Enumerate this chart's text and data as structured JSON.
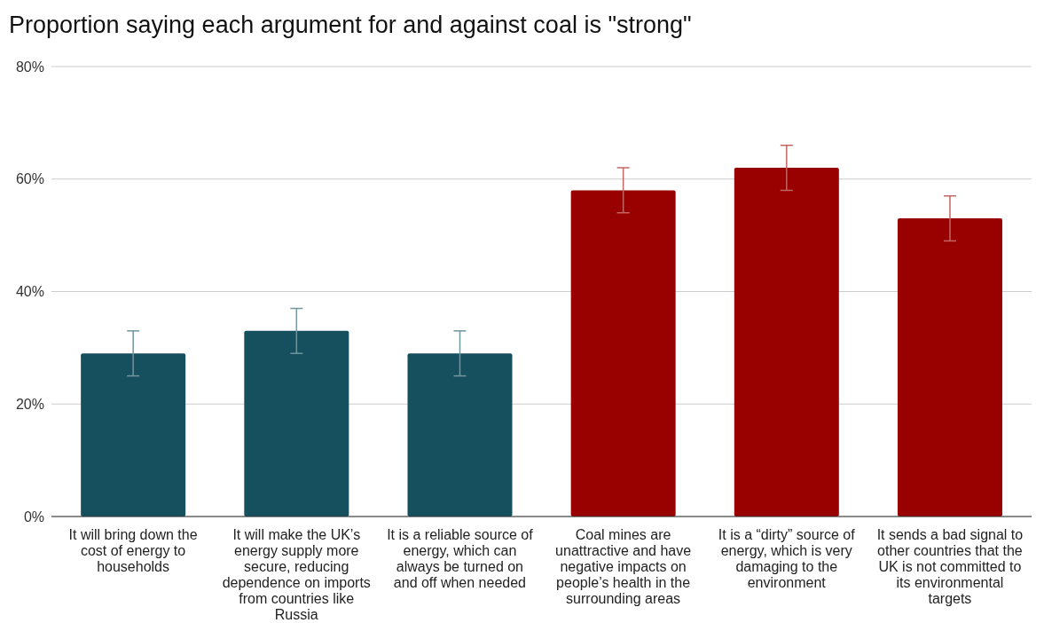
{
  "chart_data": {
    "type": "bar",
    "title": "Proportion saying each argument for and against coal is \"strong\"",
    "categories": [
      "It will bring down the cost of energy to households",
      "It will make the UK’s energy supply more secure, reducing dependence on imports from countries like Russia",
      "It is a reliable source of energy, which can always be turned on and off when needed",
      "Coal mines are unattractive and have negative impacts on people’s health in the surrounding areas",
      "It is a “dirty” source of energy, which is very damaging to the environment",
      "It sends a bad signal to other countries that the UK is not committed to its environmental targets"
    ],
    "values": [
      29,
      33,
      29,
      58,
      62,
      53
    ],
    "errors": [
      4,
      4,
      4,
      4,
      4,
      4
    ],
    "colors": [
      "#164f5e",
      "#164f5e",
      "#164f5e",
      "#990000",
      "#990000",
      "#990000"
    ],
    "ylim": [
      0,
      80
    ],
    "yticks": [
      {
        "value": 0,
        "label": "0%"
      },
      {
        "value": 20,
        "label": "20%"
      },
      {
        "value": 40,
        "label": "40%"
      },
      {
        "value": 60,
        "label": "60%"
      },
      {
        "value": 80,
        "label": "80%"
      }
    ],
    "grid": "y"
  }
}
